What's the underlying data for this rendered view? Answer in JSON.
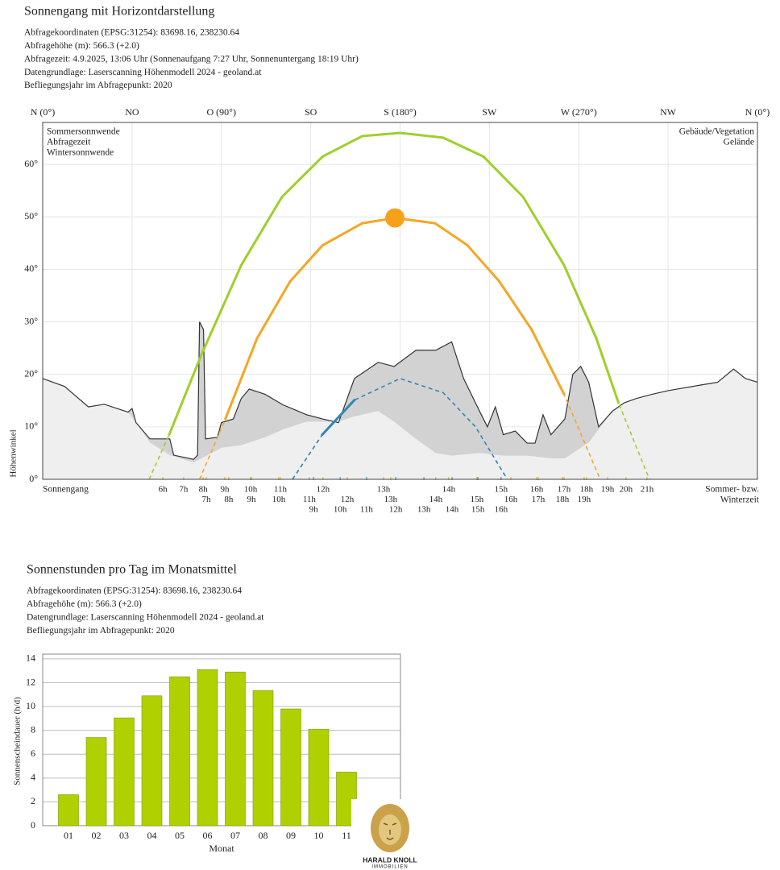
{
  "chart_data": [
    {
      "type": "sunpath",
      "title": "Sonnengang mit Horizontdarstellung",
      "info": [
        "Abfragekoordinaten (EPSG:31254): 83698.16, 238230.64",
        "Abfragehöhe (m): 566.3 (+2.0)",
        "Abfragezeit: 4.9.2025, 13:06 Uhr (Sonnenaufgang 7:27 Uhr,  Sonnenuntergang 18:19 Uhr)",
        "Datengrundlage: Laserscanning Höhenmodell 2024 - geoland.at",
        "Befliegungsjahr im Abfragepunkt: 2020"
      ],
      "xlim": [
        0,
        360
      ],
      "xticks": [
        {
          "value": 0,
          "label": "N (0°)"
        },
        {
          "value": 45,
          "label": "NO"
        },
        {
          "value": 90,
          "label": "O (90°)"
        },
        {
          "value": 135,
          "label": "SO"
        },
        {
          "value": 180,
          "label": "S (180°)"
        },
        {
          "value": 225,
          "label": "SW"
        },
        {
          "value": 270,
          "label": "W (270°)"
        },
        {
          "value": 315,
          "label": "NW"
        },
        {
          "value": 360,
          "label": "N (0°)"
        }
      ],
      "ylim": [
        0,
        68
      ],
      "yticks": [
        {
          "value": 0,
          "label": "0°"
        },
        {
          "value": 10,
          "label": "10°"
        },
        {
          "value": 20,
          "label": "20°"
        },
        {
          "value": 30,
          "label": "30°"
        },
        {
          "value": 40,
          "label": "40°"
        },
        {
          "value": 50,
          "label": "50°"
        },
        {
          "value": 60,
          "label": "60°"
        }
      ],
      "ylabel": "Höhenwinkel",
      "grid": true,
      "horizon": [
        {
          "name": "Gebäude/Vegetation",
          "color": "#d2d2d2",
          "line_color": "#333333",
          "legend_color": "#8a8a8a",
          "x": [
            0,
            11,
            23,
            31,
            43,
            45,
            47,
            54,
            64,
            66,
            76,
            78,
            79,
            81,
            82,
            88,
            90,
            96,
            100,
            104,
            112,
            121,
            133,
            141,
            149,
            157,
            169,
            177,
            188,
            198,
            206,
            212,
            220,
            224,
            228,
            232,
            238,
            244,
            248,
            252,
            256,
            263,
            267,
            271,
            275,
            280,
            287,
            293,
            299,
            307,
            315,
            332,
            340,
            348,
            354,
            360
          ],
          "values": [
            19.2,
            17.7,
            13.8,
            14.3,
            12.8,
            13.5,
            10.8,
            7.7,
            7.7,
            4.6,
            3.8,
            4.6,
            30,
            28.5,
            7.7,
            8,
            10.8,
            11.5,
            15.4,
            17.2,
            16.2,
            14.2,
            12.3,
            11.5,
            10.8,
            19.2,
            22.3,
            21.5,
            24.6,
            24.6,
            26.2,
            19.2,
            13,
            10,
            13.8,
            8.5,
            9.2,
            6.9,
            6.9,
            12.3,
            8.5,
            11.5,
            20,
            21.5,
            18.5,
            10,
            13,
            14.6,
            15.4,
            16.2,
            16.9,
            18,
            18.5,
            21,
            19.2,
            18.5
          ]
        },
        {
          "name": "Gelände",
          "color": "#efefef",
          "legend_color": "#bdbdbd",
          "x": [
            0,
            11,
            23,
            31,
            43,
            47,
            54,
            64,
            76,
            90,
            100,
            112,
            121,
            133,
            149,
            157,
            169,
            177,
            188,
            198,
            206,
            220,
            232,
            244,
            256,
            263,
            275,
            287,
            293,
            299,
            307,
            315,
            332,
            340,
            348,
            354,
            360
          ],
          "values": [
            19.2,
            17.7,
            13.8,
            14.3,
            12.8,
            10.8,
            7,
            4.6,
            3.2,
            6,
            6.5,
            8,
            9.5,
            11,
            11,
            12,
            13,
            11,
            7.7,
            5,
            4.5,
            5,
            4.5,
            4.5,
            4,
            4,
            7,
            13,
            14.6,
            15.4,
            16.2,
            16.9,
            18,
            18.5,
            21,
            19.2,
            18.5
          ]
        }
      ],
      "series": [
        {
          "name": "Sommersonnwende",
          "color": "#9fcf2a",
          "label_color": "#c9bb28",
          "x": [
            53.6,
            63.7,
            80,
            100,
            120.5,
            141,
            161,
            180,
            201.7,
            222,
            242,
            262.6,
            278.8,
            290,
            305.6
          ],
          "values": [
            0,
            8.5,
            23.8,
            40.8,
            53.8,
            61.5,
            65.4,
            66,
            65.1,
            61.5,
            53.8,
            40.8,
            26.9,
            14.6,
            0
          ],
          "hours": [
            {
              "value": 60.5,
              "label": "6h"
            },
            {
              "value": 71,
              "label": "7h"
            },
            {
              "value": 80.8,
              "label": "8h"
            },
            {
              "value": 91.7,
              "label": "9h"
            },
            {
              "value": 104.7,
              "label": "10h"
            },
            {
              "value": 119.7,
              "label": "11h"
            },
            {
              "value": 141.2,
              "label": "12h"
            },
            {
              "value": 171.7,
              "label": "13h"
            },
            {
              "value": 204.5,
              "label": "14h"
            },
            {
              "value": 230.9,
              "label": "15h"
            },
            {
              "value": 248.8,
              "label": "16h"
            },
            {
              "value": 262.6,
              "label": "17h"
            },
            {
              "value": 273.9,
              "label": "18h"
            },
            {
              "value": 284.5,
              "label": "19h"
            },
            {
              "value": 293.8,
              "label": "20h"
            },
            {
              "value": 304.4,
              "label": "21h"
            }
          ]
        },
        {
          "name": "Abfragezeit",
          "color": "#f5a623",
          "label_color": "#e3a126",
          "x": [
            79,
            92,
            108,
            124.6,
            141,
            161,
            177.4,
            197.6,
            213.9,
            230,
            246.3,
            262.6,
            280.8
          ],
          "values": [
            0,
            11.5,
            26.9,
            37.7,
            44.6,
            48.8,
            49.8,
            48.8,
            44.6,
            37.7,
            28.5,
            16.2,
            0
          ],
          "hours": [
            {
              "value": 82.4,
              "label": "7h"
            },
            {
              "value": 93.7,
              "label": "8h"
            },
            {
              "value": 105.1,
              "label": "9h"
            },
            {
              "value": 118.9,
              "label": "10h"
            },
            {
              "value": 134.3,
              "label": "11h"
            },
            {
              "value": 153.4,
              "label": "12h"
            },
            {
              "value": 175.3,
              "label": "13h"
            },
            {
              "value": 198,
              "label": "14h"
            },
            {
              "value": 218.7,
              "label": "15h"
            },
            {
              "value": 235.8,
              "label": "16h"
            },
            {
              "value": 249.6,
              "label": "17h"
            },
            {
              "value": 261.8,
              "label": "18h"
            },
            {
              "value": 272.7,
              "label": "19h"
            }
          ]
        },
        {
          "name": "Wintersonnwende",
          "color": "#2f86b5",
          "label_color": "#3a8ab8",
          "x": [
            125.8,
            140.8,
            157,
            180,
            201.7,
            218,
            234
          ],
          "values": [
            0,
            8.5,
            15.1,
            19.2,
            16.5,
            10,
            0
          ],
          "hours": [
            {
              "value": 136.4,
              "label": "9h"
            },
            {
              "value": 149.8,
              "label": "10h"
            },
            {
              "value": 163.1,
              "label": "11h"
            },
            {
              "value": 177.8,
              "label": "12h"
            },
            {
              "value": 192,
              "label": "13h"
            },
            {
              "value": 206.2,
              "label": "14h"
            },
            {
              "value": 219.2,
              "label": "15h"
            },
            {
              "value": 230.9,
              "label": "16h"
            }
          ]
        }
      ],
      "sun": {
        "x": 177.4,
        "y": 49.8,
        "color": "#f7a11a"
      },
      "note_left": "Sonnengang",
      "note_right": [
        "Sommer- bzw.",
        "Winterzeit"
      ]
    },
    {
      "type": "bar",
      "title": "Sonnenstunden pro Tag im Monatsmittel",
      "info": [
        "Abfragekoordinaten (EPSG:31254): 83698.16, 238230.64",
        "Abfragehöhe (m): 566.3 (+2.0)",
        "Datengrundlage: Laserscanning Höhenmodell 2024 - geoland.at",
        "Befliegungsjahr im Abfragepunkt: 2020"
      ],
      "categories": [
        "01",
        "02",
        "03",
        "04",
        "05",
        "06",
        "07",
        "08",
        "09",
        "10",
        "11"
      ],
      "values": [
        2.6,
        7.4,
        9.05,
        10.9,
        12.5,
        13.1,
        12.9,
        11.35,
        9.8,
        8.1,
        4.5
      ],
      "color": "#b1d000",
      "ylim": [
        0,
        14.4
      ],
      "yticks": [
        0,
        2,
        4,
        6,
        8,
        10,
        12,
        14
      ],
      "ylabel": "Sonnenscheindauer (h/d)",
      "xlabel": "Monat",
      "grid": true
    }
  ],
  "logo": {
    "name": "HARALD KNOLL",
    "sub": "IMMOBILIEN"
  }
}
